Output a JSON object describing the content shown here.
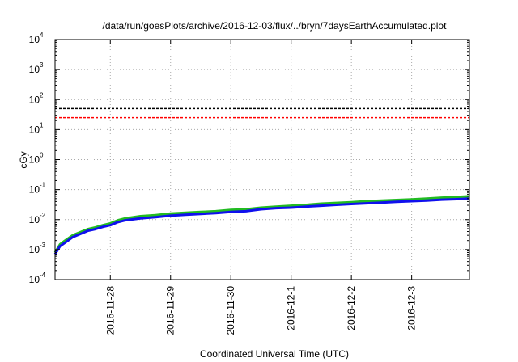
{
  "chart_data": {
    "type": "line",
    "title": "/data/run/goesPlots/archive/2016-12-03/flux/../bryn/7daysEarthAccumulated.plot",
    "xlabel": "Coordinated Universal Time (UTC)",
    "ylabel": "cGy",
    "y_scale": "log",
    "ylim": [
      0.0001,
      10000
    ],
    "y_ticks": [
      {
        "base": "10",
        "exp": "-4",
        "value": 0.0001
      },
      {
        "base": "10",
        "exp": "-3",
        "value": 0.001
      },
      {
        "base": "10",
        "exp": "-2",
        "value": 0.01
      },
      {
        "base": "10",
        "exp": "-1",
        "value": 0.1
      },
      {
        "base": "10",
        "exp": "0",
        "value": 1
      },
      {
        "base": "10",
        "exp": "1",
        "value": 10
      },
      {
        "base": "10",
        "exp": "2",
        "value": 100
      },
      {
        "base": "10",
        "exp": "3",
        "value": 1000
      },
      {
        "base": "10",
        "exp": "4",
        "value": 10000
      }
    ],
    "xlim": [
      "2016-11-27T02:00",
      "2016-12-03T23:00"
    ],
    "x_ticks": [
      {
        "label": "2016-11-28",
        "value": "2016-11-28T00:00"
      },
      {
        "label": "2016-11-29",
        "value": "2016-11-29T00:00"
      },
      {
        "label": "2016-11-30",
        "value": "2016-11-30T00:00"
      },
      {
        "label": "2016-12-1",
        "value": "2016-12-01T00:00"
      },
      {
        "label": "2016-12-2",
        "value": "2016-12-02T00:00"
      },
      {
        "label": "2016-12-3",
        "value": "2016-12-03T00:00"
      }
    ],
    "grid": true,
    "reference_lines": [
      {
        "value": 50,
        "color": "#000000",
        "style": "dashed"
      },
      {
        "value": 25,
        "color": "#ff0000",
        "style": "dashed"
      }
    ],
    "series": [
      {
        "color": "#22bb22",
        "x": [
          "2016-11-27T02:00",
          "2016-11-27T04:00",
          "2016-11-27T06:00",
          "2016-11-27T09:00",
          "2016-11-27T12:00",
          "2016-11-27T15:00",
          "2016-11-27T18:00",
          "2016-11-27T21:00",
          "2016-11-28T00:00",
          "2016-11-28T03:00",
          "2016-11-28T06:00",
          "2016-11-28T12:00",
          "2016-11-28T18:00",
          "2016-11-29T00:00",
          "2016-11-29T06:00",
          "2016-11-29T12:00",
          "2016-11-29T18:00",
          "2016-11-30T00:00",
          "2016-11-30T06:00",
          "2016-11-30T12:00",
          "2016-11-30T18:00",
          "2016-12-01T00:00",
          "2016-12-01T06:00",
          "2016-12-01T12:00",
          "2016-12-01T18:00",
          "2016-12-02T00:00",
          "2016-12-02T06:00",
          "2016-12-02T12:00",
          "2016-12-02T18:00",
          "2016-12-03T00:00",
          "2016-12-03T06:00",
          "2016-12-03T12:00",
          "2016-12-03T18:00",
          "2016-12-03T23:00"
        ],
        "y": [
          0.0008,
          0.0015,
          0.002,
          0.003,
          0.0038,
          0.0048,
          0.0055,
          0.0065,
          0.0075,
          0.0095,
          0.011,
          0.013,
          0.014,
          0.016,
          0.017,
          0.018,
          0.019,
          0.021,
          0.022,
          0.025,
          0.027,
          0.029,
          0.031,
          0.034,
          0.036,
          0.038,
          0.041,
          0.043,
          0.045,
          0.047,
          0.05,
          0.054,
          0.057,
          0.06
        ]
      },
      {
        "color": "#1010ee",
        "x": [
          "2016-11-27T02:00",
          "2016-11-27T04:00",
          "2016-11-27T06:00",
          "2016-11-27T09:00",
          "2016-11-27T12:00",
          "2016-11-27T15:00",
          "2016-11-27T18:00",
          "2016-11-27T21:00",
          "2016-11-28T00:00",
          "2016-11-28T03:00",
          "2016-11-28T06:00",
          "2016-11-28T12:00",
          "2016-11-28T18:00",
          "2016-11-29T00:00",
          "2016-11-29T06:00",
          "2016-11-29T12:00",
          "2016-11-29T18:00",
          "2016-11-30T00:00",
          "2016-11-30T06:00",
          "2016-11-30T12:00",
          "2016-11-30T18:00",
          "2016-12-01T00:00",
          "2016-12-01T06:00",
          "2016-12-01T12:00",
          "2016-12-01T18:00",
          "2016-12-02T00:00",
          "2016-12-02T06:00",
          "2016-12-02T12:00",
          "2016-12-02T18:00",
          "2016-12-03T00:00",
          "2016-12-03T06:00",
          "2016-12-03T12:00",
          "2016-12-03T18:00",
          "2016-12-03T23:00"
        ],
        "y": [
          0.0007,
          0.0013,
          0.0017,
          0.0026,
          0.0033,
          0.0042,
          0.0048,
          0.0057,
          0.0065,
          0.0082,
          0.0095,
          0.011,
          0.012,
          0.0135,
          0.0145,
          0.0155,
          0.0165,
          0.018,
          0.019,
          0.022,
          0.024,
          0.025,
          0.027,
          0.029,
          0.031,
          0.033,
          0.035,
          0.037,
          0.039,
          0.041,
          0.043,
          0.046,
          0.048,
          0.05
        ]
      }
    ]
  }
}
